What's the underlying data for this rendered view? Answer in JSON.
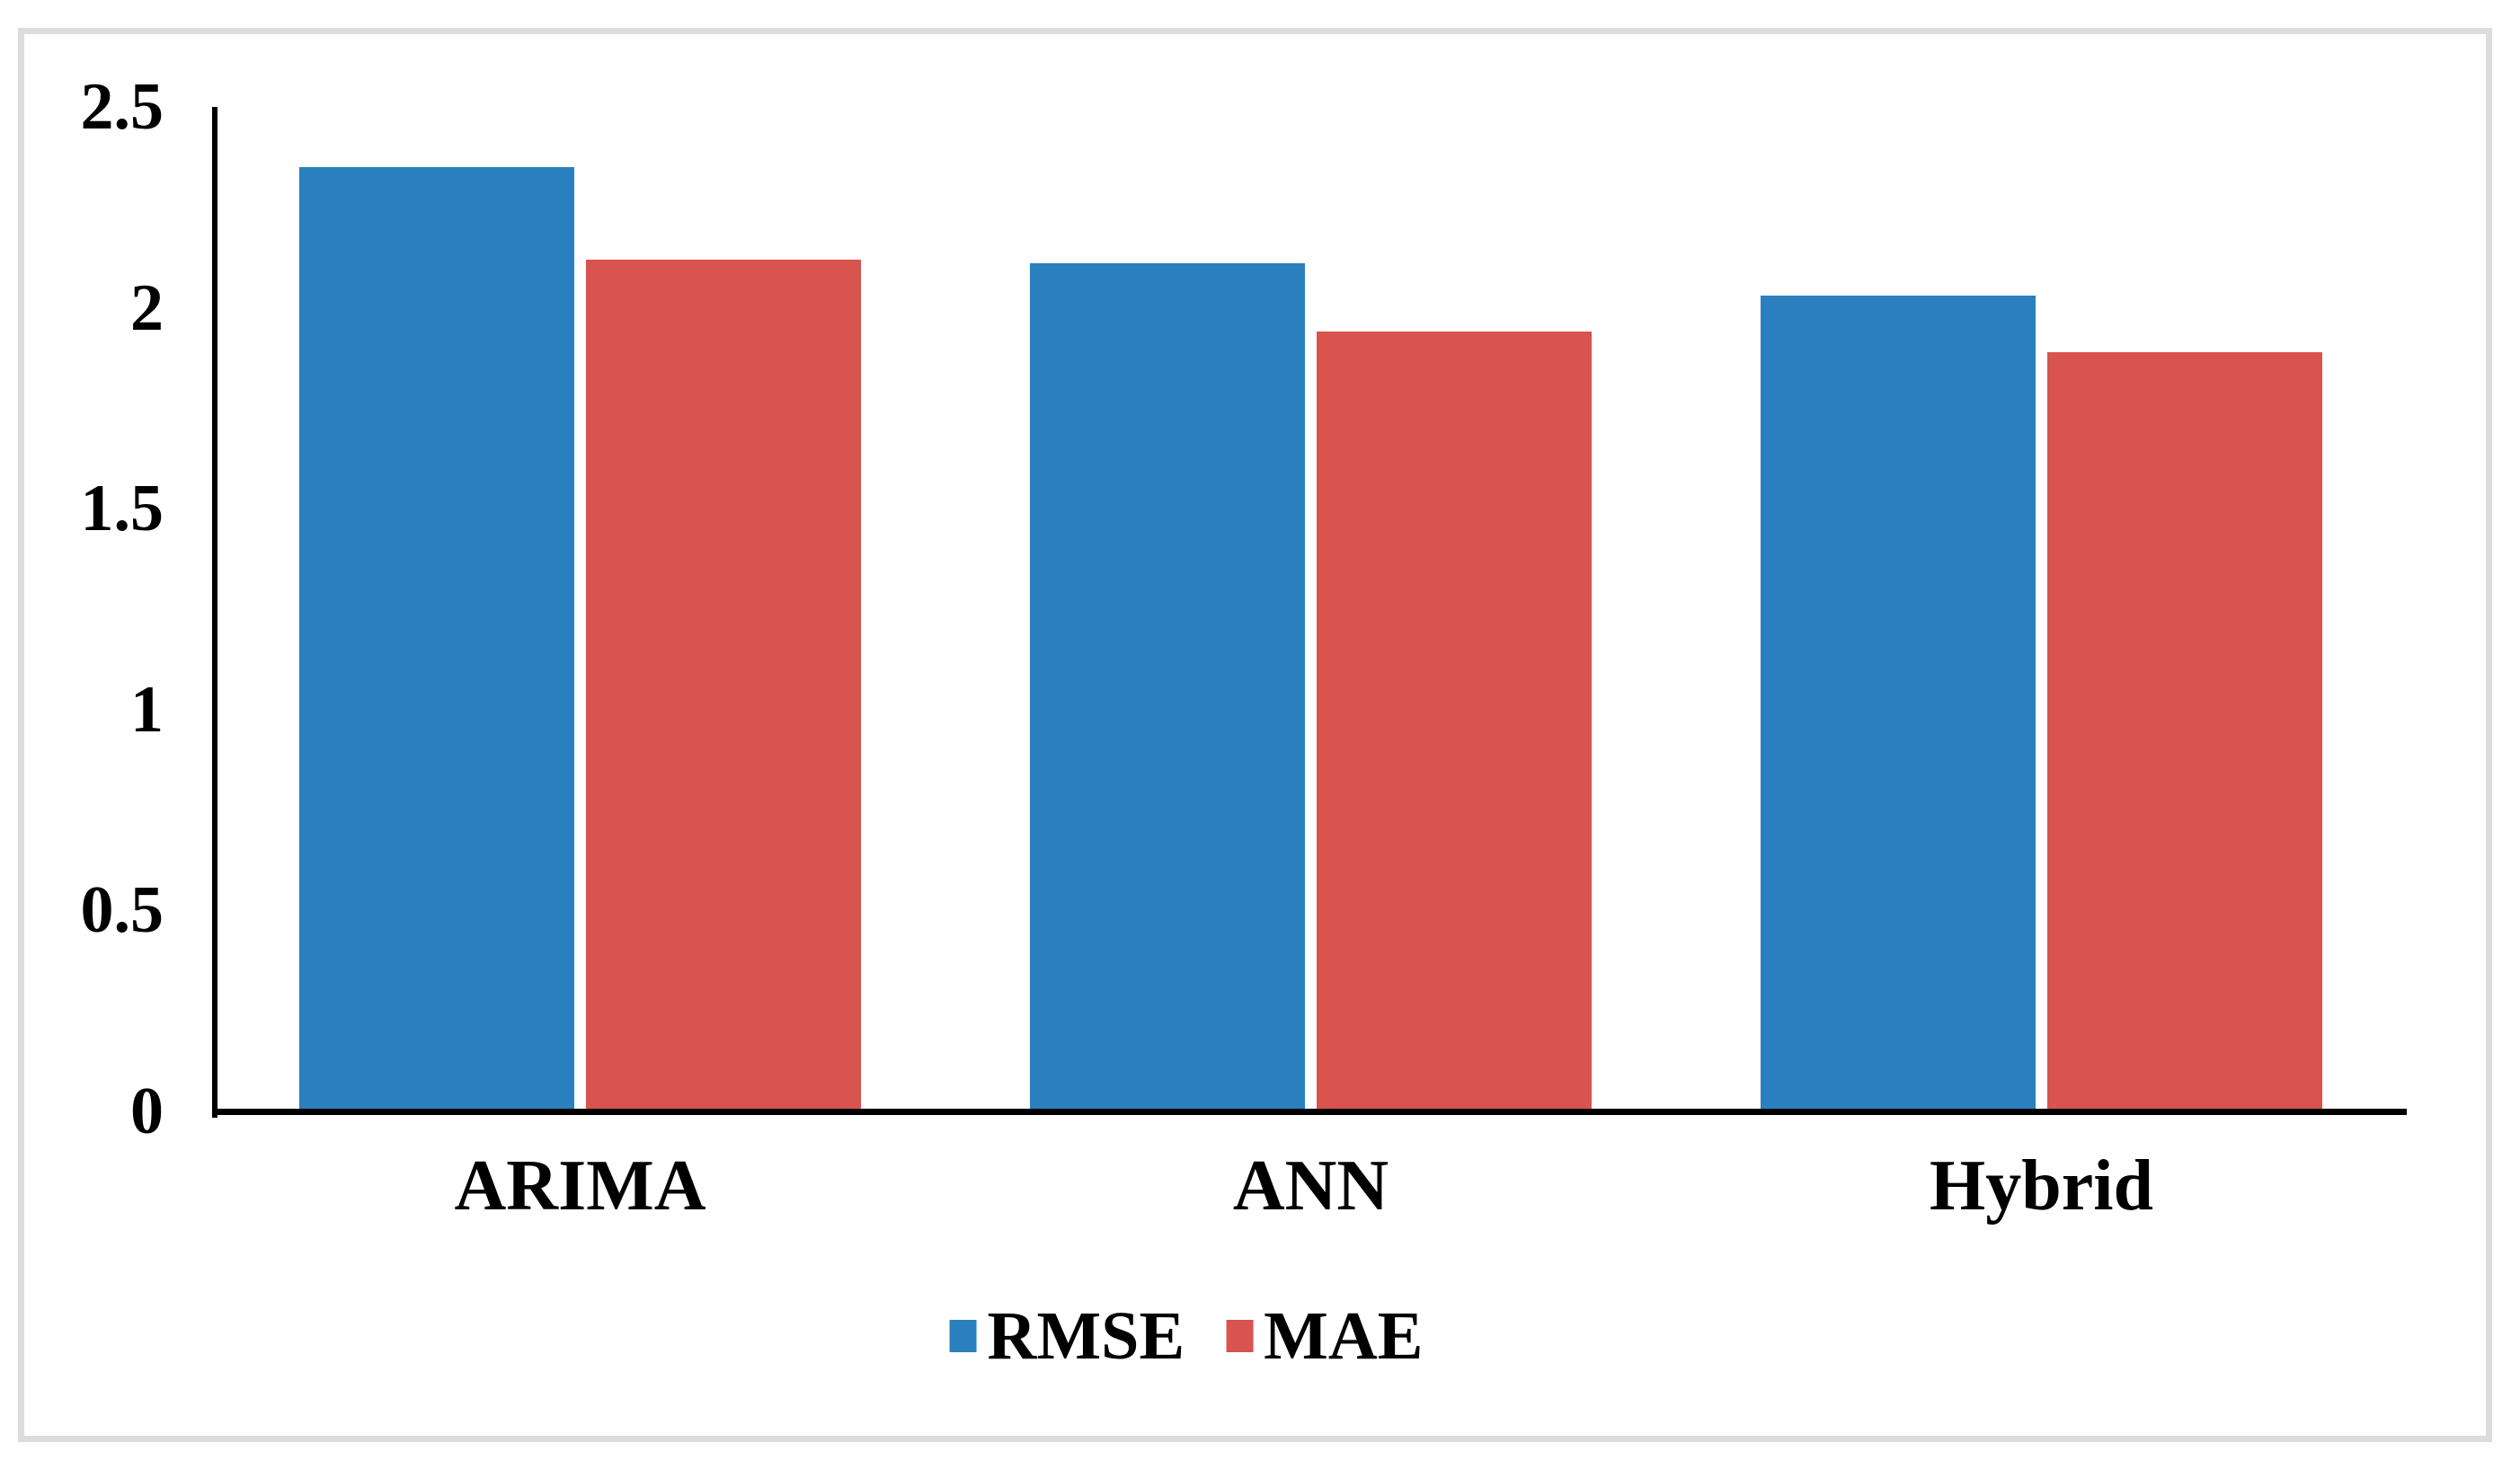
{
  "chart_data": {
    "type": "bar",
    "title": "",
    "categories": [
      "ARIMA",
      "ANN",
      "Hybrid"
    ],
    "series": [
      {
        "name": "RMSE",
        "color": "#2A80BE",
        "values": [
          2.35,
          2.11,
          2.03
        ]
      },
      {
        "name": "MAE",
        "color": "#D9534F",
        "values": [
          2.12,
          1.94,
          1.89
        ]
      }
    ],
    "ylim": [
      0,
      2.5
    ],
    "ytick_step": 0.5,
    "ytick_labels": [
      "0",
      "0.5",
      "1",
      "1.5",
      "2",
      "2.5"
    ],
    "xlabel": "",
    "ylabel": "",
    "grid": false,
    "legend_position": "bottom-center",
    "colors": {
      "axis": "#000000",
      "text": "#000000",
      "frame_border": "#dcdcdc",
      "background": "#ffffff"
    }
  }
}
